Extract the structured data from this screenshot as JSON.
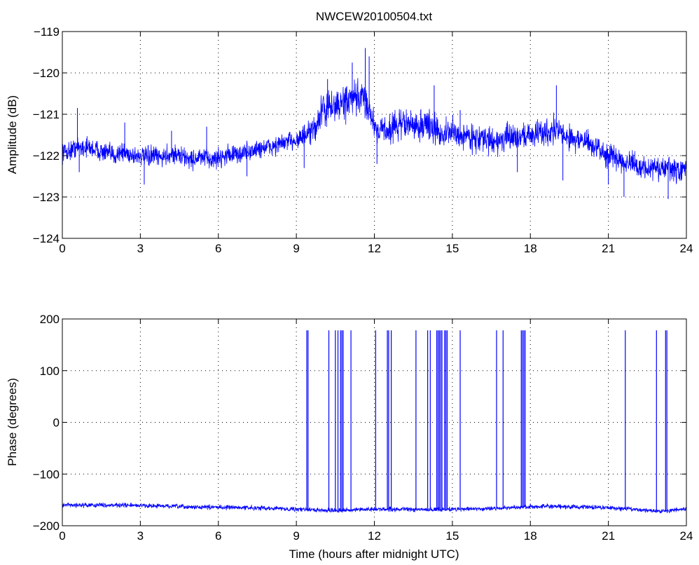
{
  "title": "NWCEW20100504.txt",
  "colors": {
    "line": "#0000ff",
    "axis": "#000000",
    "grid": "#000000",
    "background": "#ffffff"
  },
  "chart_data": [
    {
      "type": "line",
      "title": "NWCEW20100504.txt",
      "xlabel": "",
      "ylabel": "Amplitude (dB)",
      "xlim": [
        0,
        24
      ],
      "ylim": [
        -124,
        -119
      ],
      "xticks": [
        0,
        3,
        6,
        9,
        12,
        15,
        18,
        21,
        24
      ],
      "yticks": [
        -124,
        -123,
        -122,
        -121,
        -120,
        -119
      ],
      "grid": true,
      "series": [
        {
          "x": [
            0,
            0.25,
            0.5,
            0.75,
            1,
            1.25,
            1.5,
            1.75,
            2,
            2.25,
            2.5,
            2.75,
            3,
            3.25,
            3.5,
            3.75,
            4,
            4.25,
            4.5,
            4.75,
            5,
            5.25,
            5.5,
            5.75,
            6,
            6.25,
            6.5,
            6.75,
            7,
            7.25,
            7.5,
            7.75,
            8,
            8.25,
            8.5,
            8.75,
            9,
            9.25,
            9.5,
            9.75,
            10,
            10.25,
            10.5,
            10.75,
            11,
            11.25,
            11.5,
            11.75,
            12,
            12.25,
            12.5,
            12.75,
            13,
            13.25,
            13.5,
            13.75,
            14,
            14.25,
            14.5,
            14.75,
            15,
            15.25,
            15.5,
            15.75,
            16,
            16.25,
            16.5,
            16.75,
            17,
            17.25,
            17.5,
            17.75,
            18,
            18.25,
            18.5,
            18.75,
            19,
            19.25,
            19.5,
            19.75,
            20,
            20.25,
            20.5,
            20.75,
            21,
            21.25,
            21.5,
            21.75,
            22,
            22.25,
            22.5,
            22.75,
            23,
            23.25,
            23.5,
            23.75,
            24
          ],
          "center": [
            -121.9,
            -121.9,
            -121.8,
            -121.8,
            -121.8,
            -121.85,
            -121.9,
            -121.95,
            -122.0,
            -121.9,
            -121.95,
            -122.0,
            -122.0,
            -122.05,
            -122.0,
            -122.05,
            -122.0,
            -121.95,
            -122.0,
            -122.05,
            -122.1,
            -122.05,
            -122.05,
            -122.1,
            -122.05,
            -122.0,
            -121.95,
            -122.0,
            -121.9,
            -121.9,
            -121.85,
            -121.8,
            -121.8,
            -121.75,
            -121.7,
            -121.65,
            -121.6,
            -121.55,
            -121.5,
            -121.3,
            -120.9,
            -120.85,
            -120.8,
            -120.75,
            -120.7,
            -120.65,
            -120.6,
            -120.75,
            -121.3,
            -121.35,
            -121.4,
            -121.3,
            -121.25,
            -121.2,
            -121.3,
            -121.3,
            -121.2,
            -121.35,
            -121.45,
            -121.5,
            -121.4,
            -121.55,
            -121.5,
            -121.55,
            -121.6,
            -121.6,
            -121.65,
            -121.65,
            -121.6,
            -121.55,
            -121.55,
            -121.5,
            -121.5,
            -121.45,
            -121.45,
            -121.4,
            -121.35,
            -121.5,
            -121.55,
            -121.6,
            -121.65,
            -121.7,
            -121.8,
            -121.9,
            -122.0,
            -122.05,
            -122.1,
            -122.15,
            -122.25,
            -122.3,
            -122.3,
            -122.3,
            -122.35,
            -122.3,
            -122.35,
            -122.4,
            -122.3
          ],
          "spread": [
            0.3,
            0.3,
            0.3,
            0.3,
            0.3,
            0.3,
            0.3,
            0.3,
            0.3,
            0.3,
            0.3,
            0.3,
            0.3,
            0.3,
            0.3,
            0.3,
            0.3,
            0.3,
            0.3,
            0.3,
            0.3,
            0.3,
            0.3,
            0.3,
            0.3,
            0.3,
            0.3,
            0.3,
            0.3,
            0.3,
            0.3,
            0.3,
            0.3,
            0.3,
            0.3,
            0.3,
            0.35,
            0.35,
            0.4,
            0.45,
            0.5,
            0.5,
            0.5,
            0.5,
            0.55,
            0.55,
            0.55,
            0.5,
            0.45,
            0.45,
            0.45,
            0.45,
            0.45,
            0.45,
            0.45,
            0.45,
            0.45,
            0.45,
            0.45,
            0.45,
            0.4,
            0.4,
            0.4,
            0.4,
            0.4,
            0.4,
            0.4,
            0.4,
            0.4,
            0.4,
            0.4,
            0.4,
            0.4,
            0.4,
            0.4,
            0.4,
            0.45,
            0.4,
            0.4,
            0.4,
            0.4,
            0.4,
            0.35,
            0.35,
            0.35,
            0.35,
            0.35,
            0.35,
            0.35,
            0.35,
            0.35,
            0.35,
            0.35,
            0.35,
            0.35,
            0.35,
            0.35
          ],
          "spikes": [
            [
              0.58,
              -120.85
            ],
            [
              0.65,
              -122.4
            ],
            [
              2.4,
              -121.2
            ],
            [
              3.15,
              -122.7
            ],
            [
              4.2,
              -121.4
            ],
            [
              5.55,
              -121.3
            ],
            [
              7.1,
              -122.5
            ],
            [
              9.3,
              -122.3
            ],
            [
              10.2,
              -120.15
            ],
            [
              11.15,
              -119.75
            ],
            [
              11.65,
              -119.4
            ],
            [
              11.8,
              -119.6
            ],
            [
              12.1,
              -122.2
            ],
            [
              13.3,
              -121.5
            ],
            [
              14.3,
              -120.3
            ],
            [
              15.3,
              -120.9
            ],
            [
              17.5,
              -122.4
            ],
            [
              19.0,
              -120.3
            ],
            [
              19.25,
              -122.6
            ],
            [
              21.0,
              -122.7
            ],
            [
              21.6,
              -123.0
            ],
            [
              23.3,
              -123.05
            ],
            [
              23.7,
              -122.3
            ]
          ]
        }
      ]
    },
    {
      "type": "line",
      "title": "",
      "xlabel": "Time (hours after midnight UTC)",
      "ylabel": "Phase (degrees)",
      "xlim": [
        0,
        24
      ],
      "ylim": [
        -200,
        200
      ],
      "xticks": [
        0,
        3,
        6,
        9,
        12,
        15,
        18,
        21,
        24
      ],
      "yticks": [
        -200,
        -100,
        0,
        100,
        200
      ],
      "grid": true,
      "series": [
        {
          "x": [
            0,
            1,
            2,
            3,
            4,
            5,
            6,
            7,
            8,
            9,
            10,
            11,
            12,
            13,
            14,
            15,
            16,
            17,
            18,
            19,
            20,
            21,
            22,
            23,
            24
          ],
          "center": [
            -160,
            -160,
            -160,
            -161,
            -162,
            -164,
            -164,
            -165,
            -166,
            -168,
            -170,
            -170,
            -168,
            -168,
            -169,
            -168,
            -167,
            -166,
            -163,
            -163,
            -164,
            -165,
            -168,
            -172,
            -168
          ],
          "spread": 7,
          "wraps": [
            9.4,
            9.45,
            10.25,
            10.5,
            10.6,
            10.7,
            10.75,
            10.8,
            11.1,
            12.05,
            12.5,
            12.55,
            12.65,
            13.6,
            14.05,
            14.15,
            14.4,
            14.45,
            14.5,
            14.55,
            14.6,
            14.7,
            14.75,
            14.8,
            15.3,
            16.7,
            16.95,
            17.65,
            17.7,
            17.75,
            17.8,
            21.65,
            22.85,
            23.2,
            23.25
          ]
        }
      ]
    }
  ]
}
